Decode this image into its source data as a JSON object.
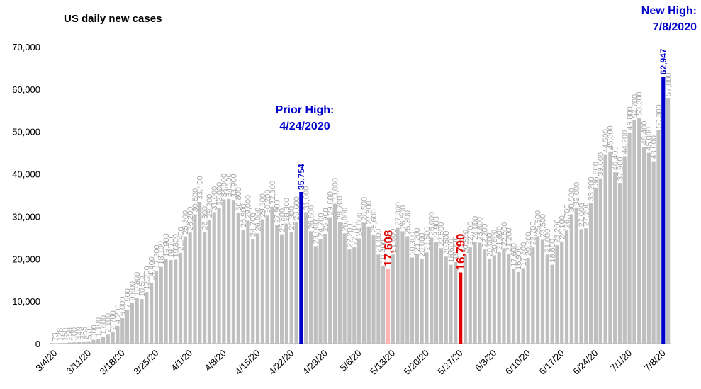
{
  "chart_data": {
    "type": "bar",
    "title": "US daily new cases",
    "categories": [
      "3/4/20",
      null,
      null,
      null,
      null,
      null,
      null,
      "3/11/20",
      null,
      null,
      null,
      null,
      null,
      null,
      "3/18/20",
      null,
      null,
      null,
      null,
      null,
      null,
      "3/25/20",
      null,
      null,
      null,
      null,
      null,
      null,
      "4/1/20",
      null,
      null,
      null,
      null,
      null,
      null,
      "4/8/20",
      null,
      null,
      null,
      null,
      null,
      null,
      "4/15/20",
      null,
      null,
      null,
      null,
      null,
      null,
      "4/22/20",
      null,
      null,
      null,
      null,
      null,
      null,
      "4/29/20",
      null,
      null,
      null,
      null,
      null,
      null,
      "5/6/20",
      null,
      null,
      null,
      null,
      null,
      null,
      "5/13/20",
      null,
      null,
      null,
      null,
      null,
      null,
      "5/20/20",
      null,
      null,
      null,
      null,
      null,
      null,
      "5/27/20",
      null,
      null,
      null,
      null,
      null,
      null,
      "6/3/20",
      null,
      null,
      null,
      null,
      null,
      null,
      "6/10/20",
      null,
      null,
      null,
      null,
      null,
      null,
      "6/17/20",
      null,
      null,
      null,
      null,
      null,
      null,
      "6/24/20",
      null,
      null,
      null,
      null,
      null,
      null,
      "7/1/20",
      null,
      null,
      null,
      null,
      null,
      null,
      "7/8/20",
      null
    ],
    "values": [
      73,
      128,
      150,
      258,
      300,
      449,
      465,
      570,
      900,
      1100,
      1600,
      2100,
      2700,
      4200,
      6000,
      7900,
      9600,
      10800,
      10500,
      12200,
      14400,
      17200,
      18100,
      19900,
      19700,
      19800,
      21400,
      25300,
      26200,
      30500,
      33400,
      26300,
      29200,
      31000,
      32000,
      34000,
      34100,
      33900,
      30800,
      26900,
      29000,
      24700,
      26000,
      29300,
      30200,
      32300,
      27900,
      25800,
      28300,
      26300,
      28600,
      35754,
      31000,
      26500,
      23000,
      24700,
      25900,
      29800,
      33000,
      28700,
      26000,
      22200,
      22700,
      24800,
      28500,
      27600,
      25600,
      21000,
      18400,
      17608,
      21000,
      27300,
      26500,
      25300,
      20300,
      21200,
      20000,
      21500,
      25000,
      23900,
      22500,
      20500,
      18600,
      19200,
      16790,
      20800,
      22700,
      24000,
      23800,
      22200,
      20000,
      20800,
      21600,
      22500,
      21200,
      17600,
      16900,
      17800,
      20200,
      22700,
      25300,
      24500,
      21000,
      18600,
      23200,
      24100,
      26700,
      30500,
      32000,
      27000,
      27200,
      33200,
      36800,
      39000,
      44500,
      45300,
      40400,
      37900,
      44200,
      49800,
      52700,
      53300,
      46400,
      45000,
      43000,
      50300,
      62947,
      57800
    ],
    "value_labels": [
      "73",
      "128",
      "150",
      "258",
      "300",
      "449",
      "465",
      "570",
      "900",
      "1,100",
      "1,600",
      "2,100",
      "2,700",
      "4,200",
      "6,000",
      "7,900",
      "9,600",
      "10,800",
      "10,500",
      "12,200",
      "14,400",
      "17,200",
      "18,100",
      "19,900",
      "19,700",
      "19,800",
      "21,400",
      "25,300",
      "26,200",
      "30,500",
      "33,400",
      "26,300",
      "29,200",
      "31,000",
      "32,000",
      "34,000",
      "34,100",
      "33,900",
      "30,800",
      "26,900",
      "29,000",
      "24,700",
      "26,000",
      "29,300",
      "30,200",
      "32,300",
      "27,900",
      "25,800",
      "28,300",
      "26,300",
      "28,600",
      "35,754",
      "31,000",
      "26,500",
      "23,000",
      "24,700",
      "25,900",
      "29,800",
      "33,000",
      "28,700",
      "26,000",
      "22,200",
      "22,700",
      "24,800",
      "28,500",
      "27,600",
      "25,600",
      "21,000",
      "18,400",
      "17,608",
      "21,000",
      "27,300",
      "26,500",
      "25,300",
      "20,300",
      "21,200",
      "20,000",
      "21,500",
      "25,000",
      "23,900",
      "22,500",
      "20,500",
      "18,600",
      "19,200",
      "16,790",
      "20,800",
      "22,700",
      "24,000",
      "23,800",
      "22,200",
      "20,000",
      "20,800",
      "21,600",
      "22,500",
      "21,200",
      "17,600",
      "16,900",
      "17,800",
      "20,200",
      "22,700",
      "25,300",
      "24,500",
      "21,000",
      "18,600",
      "23,200",
      "24,100",
      "26,700",
      "30,500",
      "32,000",
      "27,000",
      "27,200",
      "33,200",
      "36,800",
      "39,000",
      "44,500",
      "45,300",
      "40,400",
      "37,900",
      "44,200",
      "49,800",
      "52,700",
      "53,300",
      "46,400",
      "45,000",
      "43,000",
      "50,300",
      "62,947",
      "57,800"
    ],
    "color": "#bfbfbf",
    "highlights": [
      {
        "index": 51,
        "color": "#0000cc"
      },
      {
        "index": 69,
        "color": "#ffb3b3"
      },
      {
        "index": 84,
        "color": "#e00000"
      },
      {
        "index": 126,
        "color": "#0000cc"
      }
    ],
    "label_highlights": [
      {
        "index": 51,
        "color": "#0000cc"
      },
      {
        "index": 69,
        "color": "#e00000"
      },
      {
        "index": 84,
        "color": "#e00000"
      },
      {
        "index": 126,
        "color": "#0000cc"
      }
    ],
    "ylim": [
      0,
      70000
    ],
    "yticks": [
      0,
      {
        "value": 10000,
        "label": "10,000"
      },
      {
        "value": 20000,
        "label": "20,000"
      },
      {
        "value": 30000,
        "label": "30,000"
      },
      {
        "value": 40000,
        "label": "40,000"
      },
      {
        "value": 50000,
        "label": "50,000"
      },
      {
        "value": 60000,
        "label": "60,000"
      },
      {
        "value": 70000,
        "label": "70,000"
      }
    ],
    "grid": false,
    "annotations": [
      {
        "lines": [
          "Prior High:",
          "4/24/2020"
        ],
        "color": "#0000cc"
      },
      {
        "lines": [
          "New High:",
          "7/8/2020"
        ],
        "color": "#0000cc"
      }
    ]
  }
}
